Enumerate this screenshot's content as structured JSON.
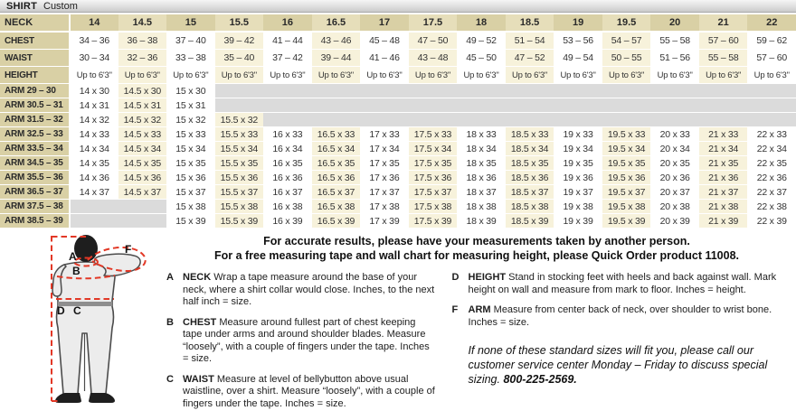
{
  "table": {
    "title": "SHIRT",
    "subtitle": "Custom",
    "neck_label": "NECK",
    "neck_sizes": [
      "14",
      "14.5",
      "15",
      "15.5",
      "16",
      "16.5",
      "17",
      "17.5",
      "18",
      "18.5",
      "19",
      "19.5",
      "20",
      "21",
      "22"
    ],
    "rows": [
      {
        "label": "CHEST",
        "cells": [
          "34 – 36",
          "36 – 38",
          "37 – 40",
          "39 – 42",
          "41 – 44",
          "43 – 46",
          "45 – 48",
          "47 – 50",
          "49 – 52",
          "51 – 54",
          "53 – 56",
          "54 – 57",
          "55 – 58",
          "57 – 60",
          "59 – 62"
        ]
      },
      {
        "label": "WAIST",
        "cells": [
          "30 – 34",
          "32 – 36",
          "33 – 38",
          "35 – 40",
          "37 – 42",
          "39 – 44",
          "41 – 46",
          "43 – 48",
          "45 – 50",
          "47 – 52",
          "49 – 54",
          "50 – 55",
          "51 – 56",
          "55 – 58",
          "57 – 60"
        ]
      },
      {
        "label": "HEIGHT",
        "cells": [
          "Up to 6'3\"",
          "Up to 6'3\"",
          "Up to 6'3\"",
          "Up to 6'3\"",
          "Up to 6'3\"",
          "Up to 6'3\"",
          "Up to 6'3\"",
          "Up to 6'3\"",
          "Up to 6'3\"",
          "Up to 6'3\"",
          "Up to 6'3\"",
          "Up to 6'3\"",
          "Up to 6'3\"",
          "Up to 6'3\"",
          "Up to 6'3\""
        ]
      },
      {
        "label": "ARM 29 – 30",
        "cells": [
          "14 x 30",
          "14.5 x 30",
          "15 x 30",
          "",
          "",
          "",
          "",
          "",
          "",
          "",
          "",
          "",
          "",
          "",
          ""
        ]
      },
      {
        "label": "ARM 30.5 – 31",
        "cells": [
          "14 x 31",
          "14.5 x 31",
          "15 x 31",
          "",
          "",
          "",
          "",
          "",
          "",
          "",
          "",
          "",
          "",
          "",
          ""
        ]
      },
      {
        "label": "ARM 31.5 – 32",
        "cells": [
          "14 x 32",
          "14.5 x 32",
          "15 x 32",
          "15.5 x 32",
          "",
          "",
          "",
          "",
          "",
          "",
          "",
          "",
          "",
          "",
          ""
        ]
      },
      {
        "label": "ARM 32.5 – 33",
        "cells": [
          "14 x 33",
          "14.5 x 33",
          "15 x 33",
          "15.5 x 33",
          "16 x 33",
          "16.5 x 33",
          "17 x 33",
          "17.5 x 33",
          "18 x 33",
          "18.5 x 33",
          "19 x 33",
          "19.5 x 33",
          "20 x 33",
          "21 x 33",
          "22 x 33"
        ]
      },
      {
        "label": "ARM 33.5 – 34",
        "cells": [
          "14 x 34",
          "14.5 x 34",
          "15 x 34",
          "15.5 x 34",
          "16 x 34",
          "16.5 x 34",
          "17 x 34",
          "17.5 x 34",
          "18 x 34",
          "18.5 x 34",
          "19 x 34",
          "19.5 x 34",
          "20 x 34",
          "21 x 34",
          "22 x 34"
        ]
      },
      {
        "label": "ARM 34.5 – 35",
        "cells": [
          "14 x 35",
          "14.5 x 35",
          "15 x 35",
          "15.5 x 35",
          "16 x 35",
          "16.5 x 35",
          "17 x 35",
          "17.5 x 35",
          "18 x 35",
          "18.5 x 35",
          "19 x 35",
          "19.5 x 35",
          "20 x 35",
          "21 x 35",
          "22 x 35"
        ]
      },
      {
        "label": "ARM 35.5 – 36",
        "cells": [
          "14 x 36",
          "14.5 x 36",
          "15 x 36",
          "15.5 x 36",
          "16 x 36",
          "16.5 x 36",
          "17 x 36",
          "17.5 x 36",
          "18 x 36",
          "18.5 x 36",
          "19 x 36",
          "19.5 x 36",
          "20 x 36",
          "21 x 36",
          "22 x 36"
        ]
      },
      {
        "label": "ARM 36.5 – 37",
        "cells": [
          "14 x 37",
          "14.5 x 37",
          "15 x 37",
          "15.5 x 37",
          "16 x 37",
          "16.5 x 37",
          "17 x 37",
          "17.5 x 37",
          "18 x 37",
          "18.5 x 37",
          "19 x 37",
          "19.5 x 37",
          "20 x 37",
          "21 x 37",
          "22 x 37"
        ]
      },
      {
        "label": "ARM 37.5 – 38",
        "cells": [
          "",
          "",
          "15 x 38",
          "15.5 x 38",
          "16 x 38",
          "16.5 x 38",
          "17 x 38",
          "17.5 x 38",
          "18 x 38",
          "18.5 x 38",
          "19 x 38",
          "19.5 x 38",
          "20 x 38",
          "21 x 38",
          "22 x 38"
        ]
      },
      {
        "label": "ARM 38.5 – 39",
        "cells": [
          "",
          "",
          "15 x 39",
          "15.5 x 39",
          "16 x 39",
          "16.5 x 39",
          "17 x 39",
          "17.5 x 39",
          "18 x 39",
          "18.5 x 39",
          "19 x 39",
          "19.5 x 39",
          "20 x 39",
          "21 x 39",
          "22 x 39"
        ]
      }
    ]
  },
  "intro": {
    "line1": "For accurate results, please have your measurements taken by another person.",
    "line2": "For a free measuring tape and wall chart for measuring height, please Quick Order product 11008."
  },
  "definitions": {
    "left": [
      {
        "letter": "A",
        "term": "NECK",
        "text": "Wrap a tape measure around the base of your neck, where a shirt collar would close. Inches, to the next half inch = size."
      },
      {
        "letter": "B",
        "term": "CHEST",
        "text": "Measure around fullest part of chest keeping tape under arms and around shoulder blades. Measure “loosely”, with a couple of fingers under the tape. Inches = size."
      },
      {
        "letter": "C",
        "term": "WAIST",
        "text": "Measure at level of bellybutton above usual waistline, over a shirt. Measure “loosely”, with a couple of fingers under the tape. Inches = size."
      }
    ],
    "right": [
      {
        "letter": "D",
        "term": "HEIGHT",
        "text": "Stand in stocking feet with heels and back against wall. Mark height on wall and measure from mark to floor. Inches = height."
      },
      {
        "letter": "F",
        "term": "ARM",
        "text": "Measure from center back of neck, over shoulder to wrist bone. Inches = size."
      }
    ]
  },
  "note": {
    "text": "If none of these standard sizes will fit you, please call our customer service center Monday – Friday to discuss special sizing.",
    "phone": "800-225-2569."
  },
  "figure": {
    "labels": {
      "a": "A",
      "b": "B",
      "c": "C",
      "d": "D",
      "f": "F"
    }
  },
  "colors": {
    "tan": "#d9d0a5",
    "tan_light": "#e6deba",
    "cream": "#f7f2db",
    "blank_gray": "#dbdbdb",
    "dashed_red": "#e23826"
  }
}
